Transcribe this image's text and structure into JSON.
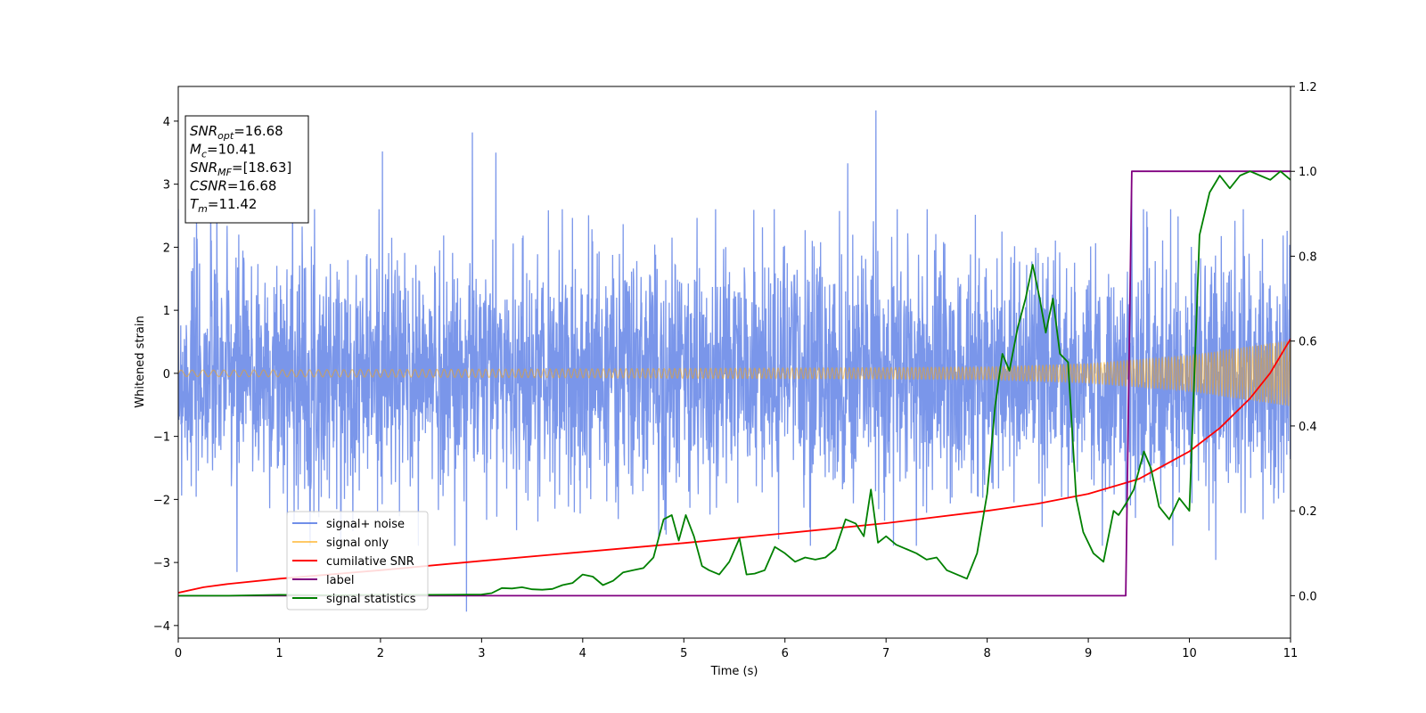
{
  "chart_data": {
    "type": "line",
    "xlabel": "Time (s)",
    "ylabel": "Whitened strain",
    "xlim": [
      0,
      11
    ],
    "ylim": [
      -4.2,
      4.55
    ],
    "y2lim": [
      -0.1,
      1.2
    ],
    "x_ticks": [
      0,
      1,
      2,
      3,
      4,
      5,
      6,
      7,
      8,
      9,
      10,
      11
    ],
    "y_ticks": [
      -4,
      -3,
      -2,
      -1,
      0,
      1,
      2,
      3,
      4
    ],
    "y2_ticks": [
      0.0,
      0.2,
      0.4,
      0.6,
      0.8,
      1.0,
      1.2
    ],
    "grid": false,
    "legend_position": "lower-left",
    "legend": [
      {
        "label": "signal+ noise",
        "color": "#4169e1"
      },
      {
        "label": "signal only",
        "color": "#ffa500"
      },
      {
        "label": "cumilative SNR",
        "color": "#ff0000"
      },
      {
        "label": "label",
        "color": "#800080"
      },
      {
        "label": "signal statistics",
        "color": "#008000"
      }
    ],
    "info_box": [
      {
        "base": "SNR",
        "sub": "opt",
        "value": "=16.68"
      },
      {
        "base": "M",
        "sub": "c",
        "value": "=10.41"
      },
      {
        "base": "SNR",
        "sub": "MF",
        "value": "=[18.63]"
      },
      {
        "base": "CSNR",
        "sub": "",
        "value": "=16.68"
      },
      {
        "base": "T",
        "sub": "m",
        "value": "=11.42"
      }
    ],
    "series": [
      {
        "name": "signal+ noise",
        "axis": "left",
        "color": "#4169e1",
        "description_range": [
          -3.8,
          4.2
        ],
        "peaks": [
          [
            0.32,
            2.9
          ],
          [
            1.13,
            3.0
          ],
          [
            2.02,
            3.52
          ],
          [
            2.91,
            3.82
          ],
          [
            3.14,
            3.5
          ],
          [
            4.75,
            3.35
          ],
          [
            6.62,
            3.33
          ],
          [
            6.9,
            4.17
          ],
          [
            9.43,
            2.95
          ],
          [
            2.85,
            -3.78
          ],
          [
            0.58,
            -3.15
          ],
          [
            4.75,
            -2.62
          ],
          [
            10.26,
            -2.96
          ]
        ]
      },
      {
        "name": "signal only",
        "axis": "left",
        "color": "#ffa500",
        "amplitude_envelope": [
          [
            0,
            0.05
          ],
          [
            4,
            0.07
          ],
          [
            7,
            0.09
          ],
          [
            8,
            0.1
          ],
          [
            9,
            0.15
          ],
          [
            10,
            0.28
          ],
          [
            10.5,
            0.4
          ],
          [
            11,
            0.52
          ]
        ]
      },
      {
        "name": "cumilative SNR",
        "axis": "right",
        "color": "#ff0000",
        "x": [
          0,
          0.25,
          0.5,
          1,
          2,
          3,
          4,
          5,
          6,
          7,
          8,
          8.5,
          9,
          9.5,
          10,
          10.3,
          10.6,
          10.8,
          11
        ],
        "values": [
          0.007,
          0.02,
          0.028,
          0.04,
          0.06,
          0.082,
          0.103,
          0.124,
          0.147,
          0.171,
          0.2,
          0.217,
          0.24,
          0.275,
          0.34,
          0.395,
          0.465,
          0.525,
          0.605
        ]
      },
      {
        "name": "label",
        "axis": "right",
        "color": "#800080",
        "x": [
          0,
          9.37,
          9.43,
          11
        ],
        "values": [
          0,
          0,
          1,
          1
        ]
      },
      {
        "name": "signal statistics",
        "axis": "right",
        "color": "#008000",
        "x": [
          0,
          0.5,
          1,
          1.5,
          2,
          2.5,
          3,
          3.1,
          3.2,
          3.3,
          3.4,
          3.5,
          3.6,
          3.7,
          3.8,
          3.9,
          4.0,
          4.1,
          4.2,
          4.3,
          4.4,
          4.5,
          4.6,
          4.7,
          4.8,
          4.88,
          4.95,
          5.02,
          5.1,
          5.18,
          5.25,
          5.35,
          5.45,
          5.55,
          5.62,
          5.7,
          5.8,
          5.9,
          6.0,
          6.1,
          6.2,
          6.3,
          6.4,
          6.5,
          6.6,
          6.7,
          6.78,
          6.85,
          6.92,
          7.0,
          7.1,
          7.2,
          7.3,
          7.4,
          7.5,
          7.6,
          7.7,
          7.8,
          7.9,
          8.0,
          8.08,
          8.15,
          8.22,
          8.3,
          8.38,
          8.45,
          8.52,
          8.58,
          8.65,
          8.72,
          8.8,
          8.88,
          8.95,
          9.05,
          9.15,
          9.25,
          9.3,
          9.38,
          9.45,
          9.55,
          9.62,
          9.7,
          9.8,
          9.9,
          10.0,
          10.1,
          10.2,
          10.3,
          10.4,
          10.5,
          10.6,
          10.7,
          10.8,
          10.9,
          11.0
        ],
        "values": [
          0.0,
          0.0,
          0.002,
          0.001,
          0.002,
          0.002,
          0.003,
          0.006,
          0.018,
          0.017,
          0.02,
          0.015,
          0.014,
          0.016,
          0.025,
          0.03,
          0.05,
          0.045,
          0.025,
          0.035,
          0.055,
          0.06,
          0.065,
          0.09,
          0.18,
          0.19,
          0.13,
          0.19,
          0.14,
          0.07,
          0.06,
          0.05,
          0.08,
          0.135,
          0.05,
          0.052,
          0.06,
          0.115,
          0.1,
          0.08,
          0.09,
          0.085,
          0.09,
          0.11,
          0.18,
          0.17,
          0.14,
          0.25,
          0.125,
          0.14,
          0.12,
          0.11,
          0.1,
          0.085,
          0.09,
          0.06,
          0.05,
          0.04,
          0.1,
          0.24,
          0.45,
          0.57,
          0.53,
          0.63,
          0.7,
          0.78,
          0.7,
          0.62,
          0.7,
          0.57,
          0.55,
          0.23,
          0.15,
          0.1,
          0.08,
          0.2,
          0.19,
          0.22,
          0.25,
          0.34,
          0.3,
          0.21,
          0.18,
          0.23,
          0.2,
          0.85,
          0.95,
          0.99,
          0.96,
          0.99,
          1.0,
          0.99,
          0.98,
          1.0,
          0.98
        ]
      }
    ]
  }
}
